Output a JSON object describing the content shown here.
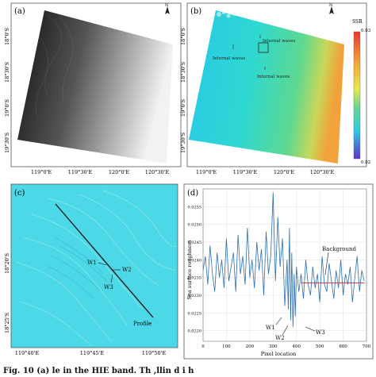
{
  "panels": {
    "a": {
      "label": "(a)",
      "x_ticks": [
        "119°0'E",
        "119°30'E",
        "120°0'E",
        "120°30'E"
      ],
      "y_ticks": [
        "18°0'S",
        "18°30'S",
        "19°0'S",
        "19°30'S"
      ]
    },
    "b": {
      "label": "(b)",
      "x_ticks": [
        "119°0'E",
        "119°30'E",
        "120°0'E",
        "120°30'E"
      ],
      "y_ticks": [
        "18°0'S",
        "18°30'S",
        "19°0'S",
        "19°30'S"
      ],
      "annotations": [
        "Internal waves",
        "Internal waves",
        "Internal waves"
      ],
      "colorbar": {
        "title": "SSR",
        "max_label": "0.03",
        "min_label": "0.02"
      }
    },
    "c": {
      "label": "(c)",
      "x_ticks": [
        "119°40'E",
        "119°45'E",
        "119°50'E"
      ],
      "y_ticks": [
        "18°20'S",
        "18°25'S"
      ],
      "points": [
        "W1",
        "W2",
        "W3"
      ],
      "profile_label": "Profile"
    },
    "d": {
      "label": "(d)",
      "xlabel": "Pixel location",
      "ylabel": "Sea surface roughness",
      "background_label": "Background",
      "points": [
        "W1",
        "W2",
        "W3"
      ]
    }
  },
  "chart_data": {
    "type": "line",
    "xlim": [
      0,
      700
    ],
    "ylim": [
      0.0217,
      0.026
    ],
    "x_ticks": [
      0,
      100,
      200,
      300,
      400,
      500,
      600,
      700
    ],
    "y_ticks": [
      0.022,
      0.0225,
      0.023,
      0.0235,
      0.024,
      0.0245,
      0.025,
      0.0255
    ],
    "y_tick_labels": [
      "0.0220",
      "0.0225",
      "0.0230",
      "0.0235",
      "0.0240",
      "0.0245",
      "0.0250",
      "0.0255"
    ],
    "background_level": 0.02335,
    "background_range": [
      420,
      690
    ],
    "line_color": "#2a6fb0",
    "background_color": "#d0302a",
    "x": [
      0,
      10,
      20,
      30,
      40,
      50,
      60,
      70,
      80,
      90,
      100,
      110,
      120,
      130,
      140,
      150,
      160,
      170,
      180,
      190,
      200,
      210,
      220,
      230,
      240,
      250,
      260,
      270,
      280,
      290,
      300,
      310,
      320,
      330,
      340,
      350,
      360,
      365,
      370,
      375,
      380,
      385,
      390,
      395,
      400,
      410,
      420,
      430,
      440,
      450,
      460,
      470,
      480,
      490,
      500,
      510,
      520,
      530,
      540,
      550,
      560,
      570,
      580,
      590,
      600,
      610,
      620,
      630,
      640,
      650,
      660,
      670,
      680,
      690
    ],
    "y": [
      0.0237,
      0.0241,
      0.0233,
      0.0244,
      0.0236,
      0.0231,
      0.0242,
      0.0235,
      0.024,
      0.0232,
      0.0246,
      0.0234,
      0.0238,
      0.0242,
      0.0231,
      0.0247,
      0.0236,
      0.0241,
      0.0233,
      0.0249,
      0.0235,
      0.024,
      0.0232,
      0.0245,
      0.0237,
      0.0243,
      0.023,
      0.0248,
      0.0236,
      0.0241,
      0.0259,
      0.0234,
      0.0252,
      0.0238,
      0.0246,
      0.0227,
      0.024,
      0.0226,
      0.0249,
      0.0223,
      0.0242,
      0.0221,
      0.0236,
      0.0224,
      0.0238,
      0.0231,
      0.0236,
      0.0229,
      0.024,
      0.0233,
      0.023,
      0.0238,
      0.0232,
      0.0236,
      0.0228,
      0.0241,
      0.0233,
      0.0231,
      0.0239,
      0.0234,
      0.0229,
      0.0237,
      0.0232,
      0.024,
      0.023,
      0.0236,
      0.0233,
      0.0238,
      0.0228,
      0.0235,
      0.0241,
      0.0231,
      0.0237,
      0.0234
    ]
  },
  "caption": "Fig. 10    (a)      le      in   the HIE  band. Th      ,llin         d    i  h"
}
